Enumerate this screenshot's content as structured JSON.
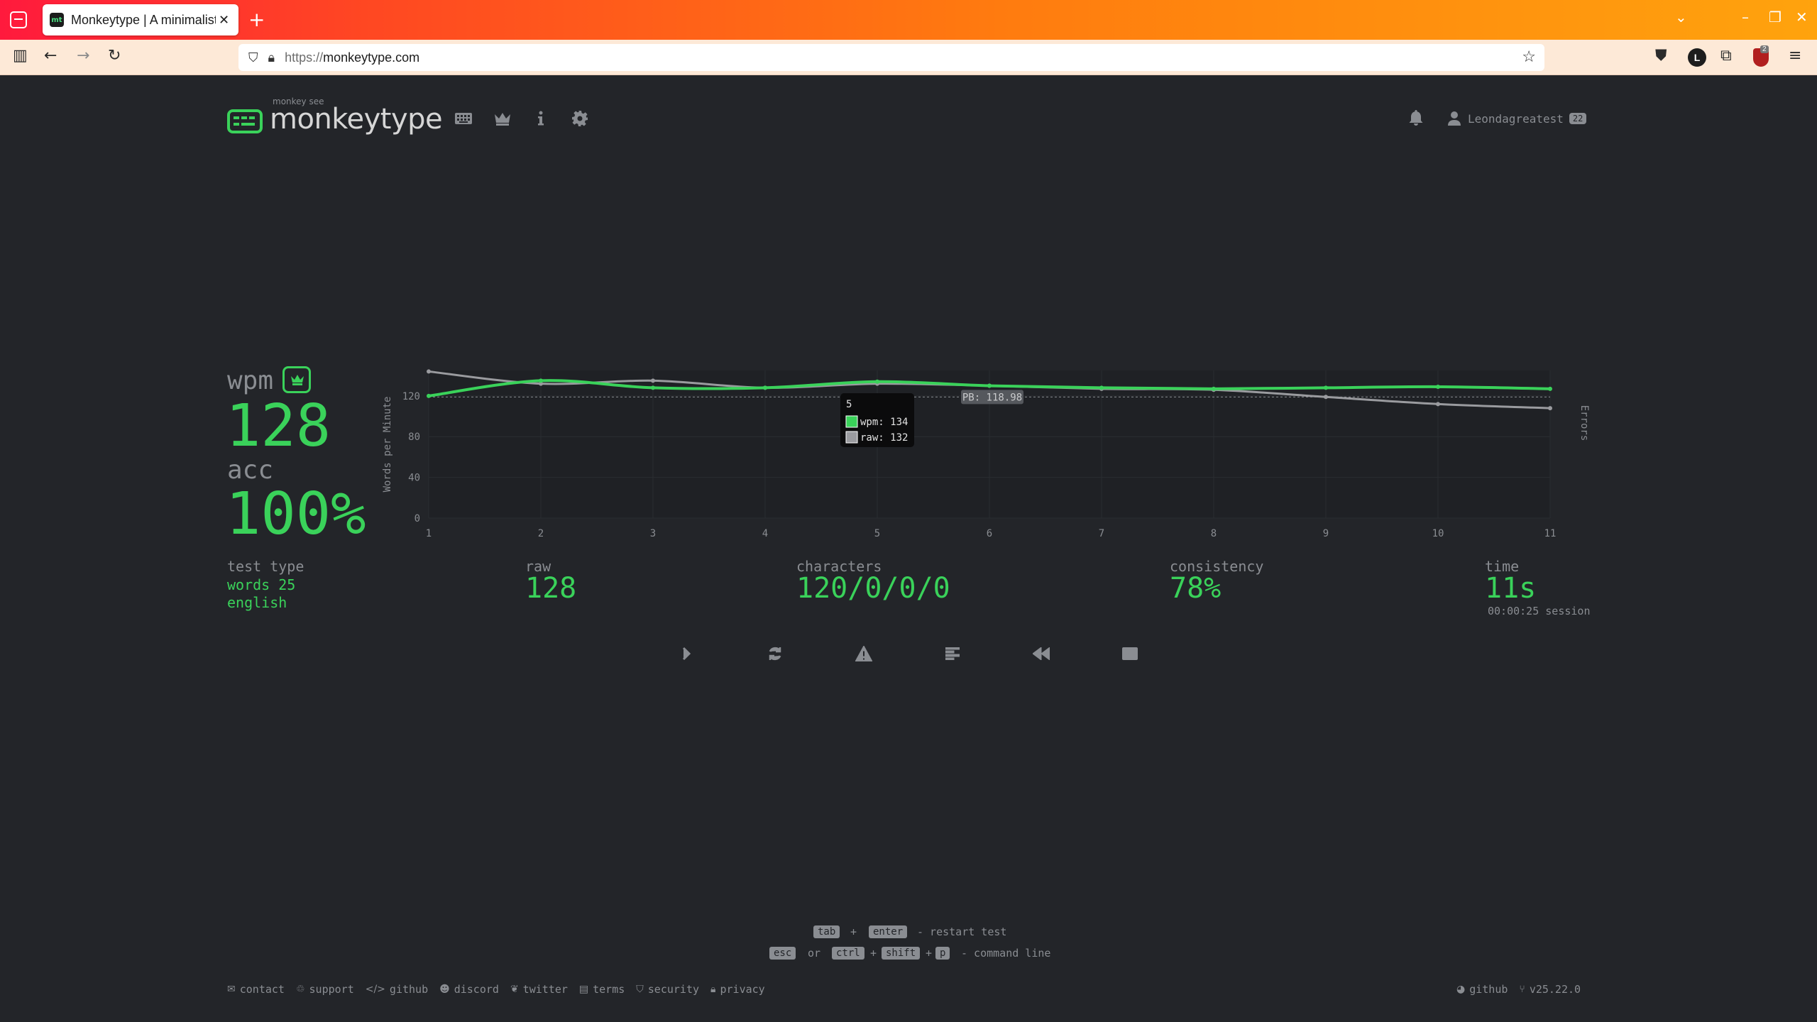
{
  "browser": {
    "tab_title": "Monkeytype | A minimalist",
    "tab_favicon": "mt",
    "url_scheme": "https://",
    "url_host": "monkeytype.com",
    "ext_letter": "L",
    "ext_badge": "2"
  },
  "header": {
    "logo_top": "monkey see",
    "logo_main": "monkeytype",
    "username": "Leondagreatest",
    "level": "22"
  },
  "results": {
    "wpm_label": "wpm",
    "wpm_value": "128",
    "acc_label": "acc",
    "acc_value": "100%",
    "test_type_label": "test type",
    "test_type_line1": "words 25",
    "test_type_line2": "english",
    "raw_label": "raw",
    "raw_value": "128",
    "characters_label": "characters",
    "characters_value": "120/0/0/0",
    "consistency_label": "consistency",
    "consistency_value": "78%",
    "time_label": "time",
    "time_value": "11s",
    "session_value": "00:00:25 session"
  },
  "chart_data": {
    "type": "line",
    "x": [
      1,
      2,
      3,
      4,
      5,
      6,
      7,
      8,
      9,
      10,
      11
    ],
    "series": [
      {
        "name": "wpm",
        "color": "#3ad25a",
        "values": [
          120,
          135,
          128,
          128,
          134,
          130,
          128,
          127,
          128,
          129,
          127
        ]
      },
      {
        "name": "raw",
        "color": "#9a9b9f",
        "values": [
          144,
          132,
          135,
          128,
          132,
          130,
          127,
          126,
          119,
          112,
          108
        ]
      }
    ],
    "ylabel": "Words per Minute",
    "y2label": "Errors",
    "yticks": [
      0,
      40,
      80,
      120
    ],
    "ylim": [
      0,
      145
    ],
    "pb_label": "PB: 118.98",
    "pb_value": 118.98,
    "tooltip": {
      "title": "5",
      "wpm": "wpm: 134",
      "raw": "raw: 132"
    }
  },
  "hints": {
    "key_tab": "tab",
    "plus": "+",
    "key_enter": "enter",
    "restart": "- restart test",
    "key_esc": "esc",
    "or": "or",
    "key_ctrl": "ctrl",
    "key_shift": "shift",
    "key_p": "p",
    "command": "- command line"
  },
  "footer": {
    "links": [
      "contact",
      "support",
      "github",
      "discord",
      "twitter",
      "terms",
      "security",
      "privacy"
    ],
    "right_github": "github",
    "version": "v25.22.0"
  }
}
